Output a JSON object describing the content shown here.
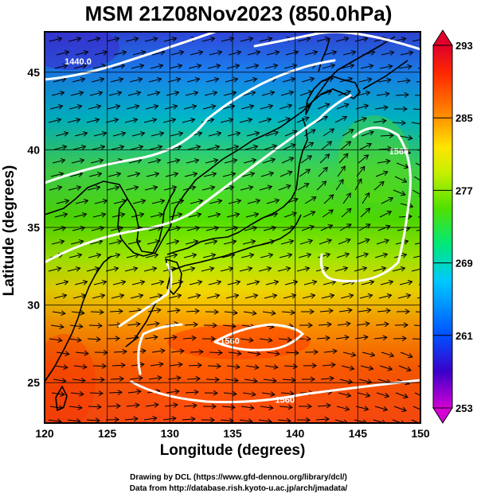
{
  "title": "MSM 21Z08Nov2023 (850.0hPa)",
  "x_label": "Longitude (degrees)",
  "y_label": "Latitude  (degrees)",
  "credit_line_1": "Drawing by DCL (https://www.gfd-dennou.org/library/dcl/)",
  "credit_line_2": "Data from http://database.rish.kyoto-u.ac.jp/arch/jmadata/",
  "map": {
    "lon_range": [
      120,
      150
    ],
    "lat_range": [
      22.4,
      47.6
    ],
    "lon_ticks": [
      120,
      125,
      130,
      135,
      140,
      145,
      150
    ],
    "lat_ticks": [
      25,
      30,
      35,
      40,
      45
    ],
    "gridlines": true
  },
  "colorbar": {
    "min": 253,
    "max": 293,
    "tick_labels": [
      "293",
      "285",
      "277",
      "269",
      "261",
      "253"
    ],
    "colormap": [
      "#d400d4",
      "#3a00c8",
      "#0050ff",
      "#00c8ff",
      "#00e87a",
      "#50e000",
      "#c8f000",
      "#ffe400",
      "#ff8000",
      "#ff2a00",
      "#e0002a"
    ]
  },
  "contour_labels": [
    {
      "text": "1440.0",
      "lon": 121.6,
      "lat": 45.5
    },
    {
      "text": "1560",
      "lon": 134.0,
      "lat": 27.5
    },
    {
      "text": "1560",
      "lon": 147.5,
      "lat": 39.7
    },
    {
      "text": "1560",
      "lon": 138.4,
      "lat": 23.7
    }
  ],
  "colors": {
    "contour": "#ffffff",
    "coastline": "#000000",
    "vectors": "#000000"
  }
}
